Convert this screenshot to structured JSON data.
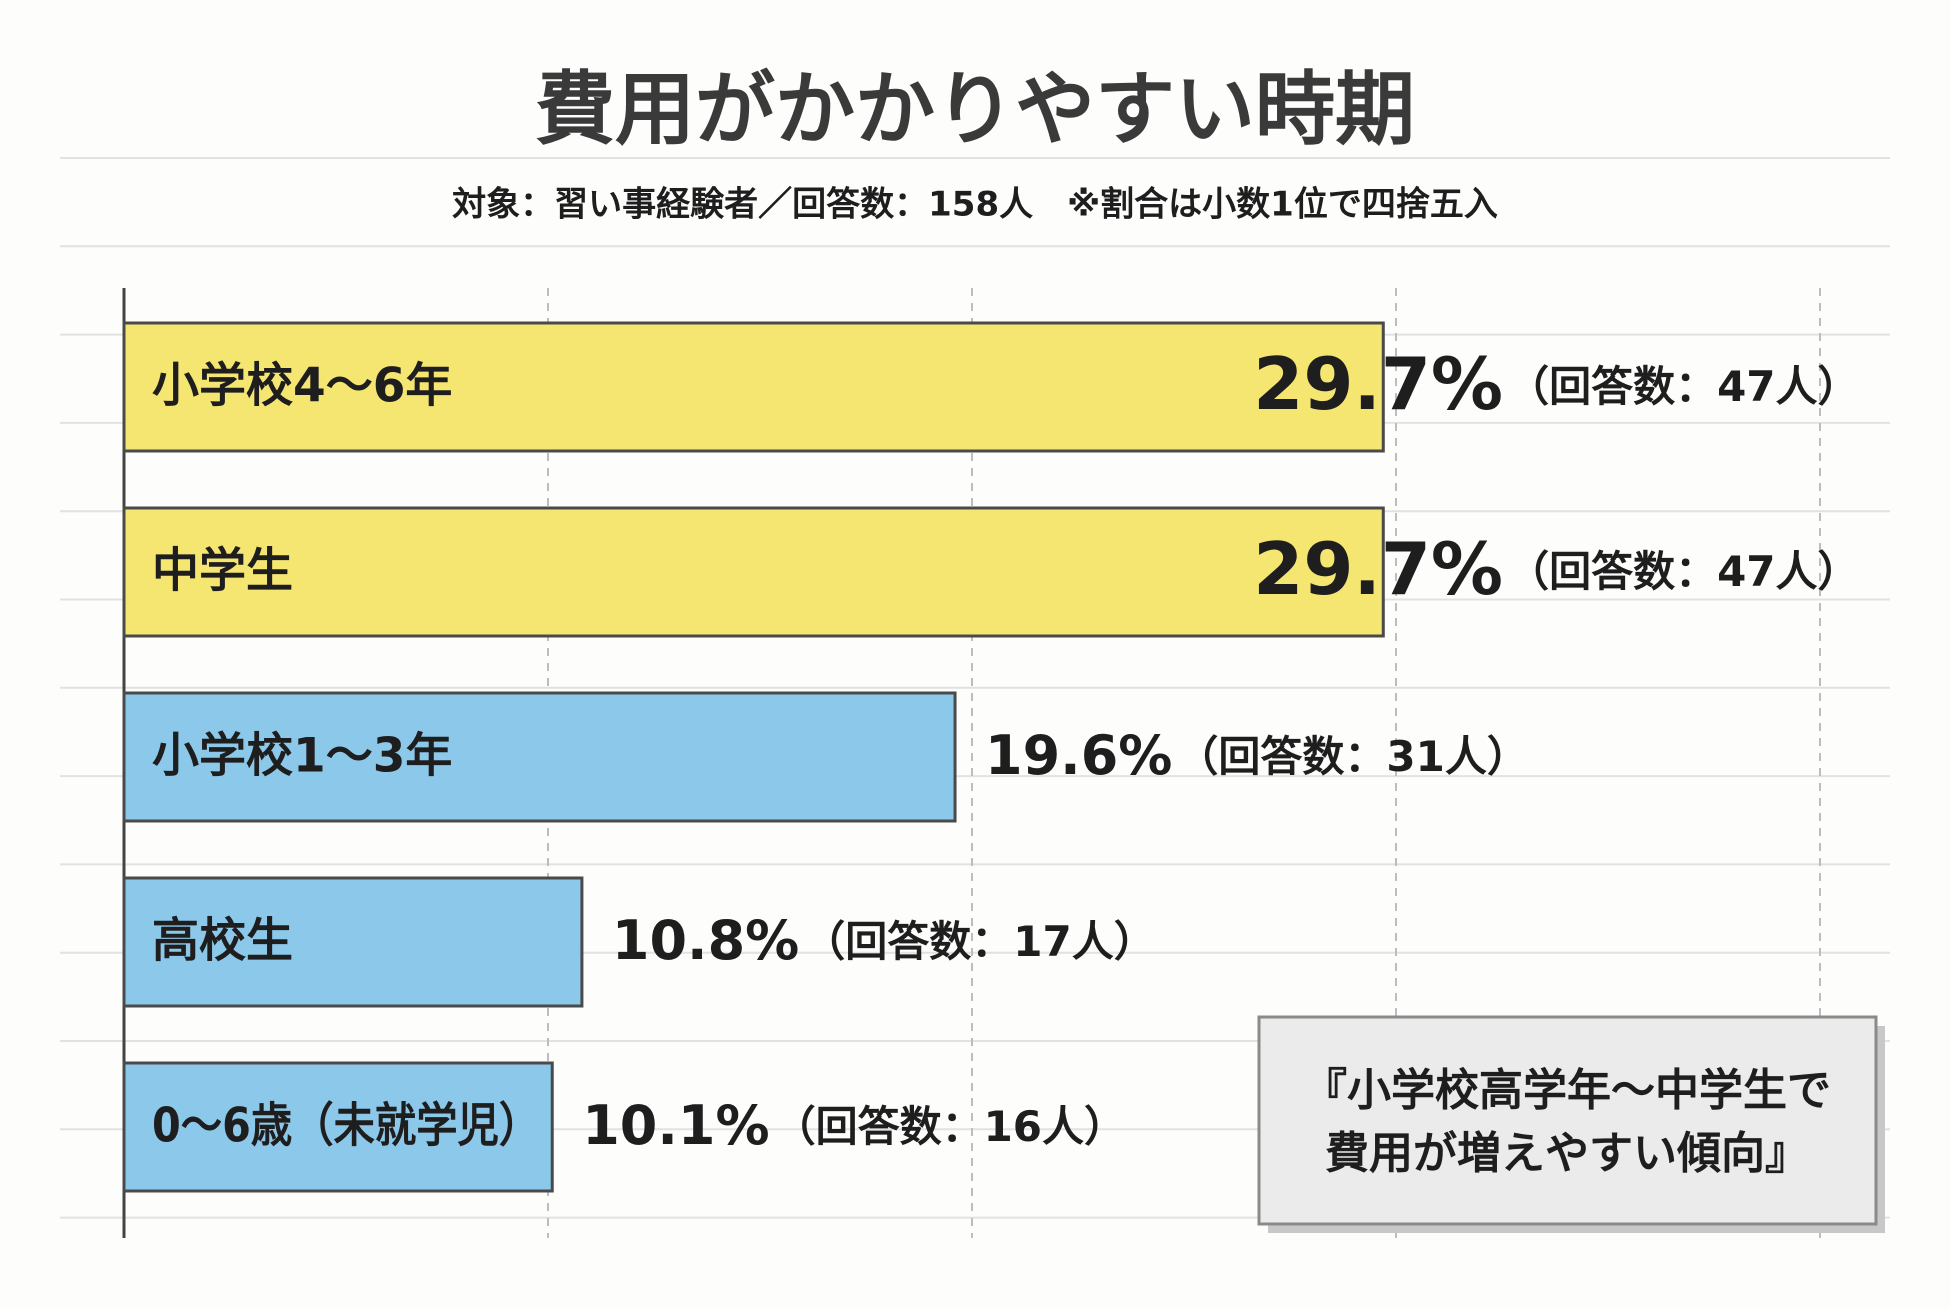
{
  "chart_data": {
    "type": "barh",
    "title": "費用がかかりやすい時期",
    "subtitle": "対象：習い事経験者／回答数：158人　※割合は小数1位で四捨五入",
    "categories": [
      "小学校4〜6年",
      "中学生",
      "小学校1〜3年",
      "高校生",
      "0〜6歳（未就学児）"
    ],
    "values": [
      29.7,
      29.7,
      19.6,
      10.8,
      10.1
    ],
    "value_labels": [
      "29.7%",
      "29.7%",
      "19.6%",
      "10.8%",
      "10.1%"
    ],
    "count_labels": [
      "（回答数：47人）",
      "（回答数：47人）",
      "（回答数：31人）",
      "（回答数：17人）",
      "（回答数：16人）"
    ],
    "colors": [
      "#f5e571",
      "#f5e571",
      "#8cc8ea",
      "#8cc8ea",
      "#8cc8ea"
    ],
    "xlim": [
      0,
      40
    ],
    "xticks": [
      0,
      10,
      20,
      30,
      40
    ],
    "grid": true,
    "annotation": [
      "『小学校高学年〜中学生で",
      "費用が増えやすい傾向』"
    ]
  }
}
